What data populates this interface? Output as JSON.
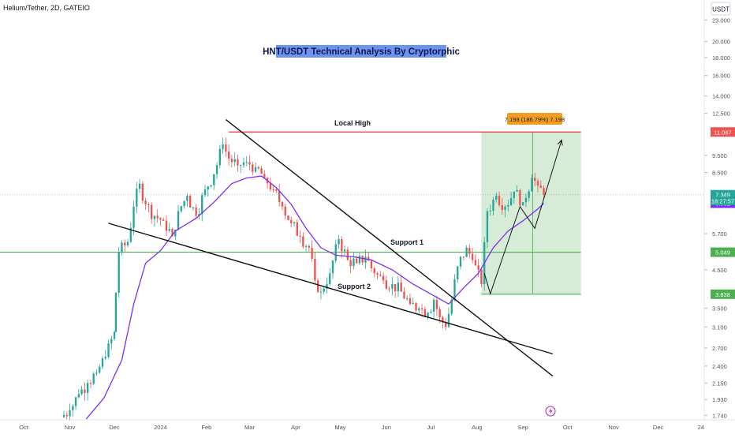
{
  "header": {
    "symbol_line": "Helium/Tether, 2D, GATEIO",
    "currency": "USDT"
  },
  "chart_data": {
    "type": "candlestick",
    "title": "HNT/USDT Technical Analysis By Cryptorphic",
    "y_scale": "log",
    "ylim": [
      1.69,
      26.2
    ],
    "y_ticks": [
      "23.000",
      "20.000",
      "18.000",
      "16.000",
      "14.000",
      "12.500",
      "11.067",
      "9.500",
      "8.500",
      "7.349",
      "6.952",
      "5.700",
      "5.049",
      "4.500",
      "3.838",
      "3.500",
      "3.100",
      "2.700",
      "2.400",
      "2.150",
      "1.930",
      "1.740"
    ],
    "x_ticks": [
      "Oct",
      "Nov",
      "Dec",
      "2024",
      "Feb",
      "Mar",
      "Apr",
      "May",
      "Jun",
      "Jul",
      "Aug",
      "Sep",
      "Oct",
      "Nov",
      "Dec",
      "24"
    ],
    "x_range": [
      "2023-09-15",
      "2025-01-01"
    ],
    "candle_interval_days": 2,
    "colors": {
      "up": "#26a69a",
      "down": "#ef5350",
      "ma": "#7b2ff7",
      "resistance": "#e53935",
      "support": "#4caf50",
      "trendline": "#111111",
      "box": "#c8e6c9"
    },
    "price_series": [
      {
        "date": "2023-10-26",
        "close": 1.72
      },
      {
        "date": "2023-11-01",
        "close": 1.8
      },
      {
        "date": "2023-11-07",
        "close": 2.0
      },
      {
        "date": "2023-11-13",
        "close": 2.15
      },
      {
        "date": "2023-11-19",
        "close": 2.3
      },
      {
        "date": "2023-11-25",
        "close": 2.55
      },
      {
        "date": "2023-12-01",
        "close": 3.0
      },
      {
        "date": "2023-12-04",
        "close": 5.05
      },
      {
        "date": "2023-12-10",
        "close": 5.4
      },
      {
        "date": "2023-12-14",
        "close": 6.8
      },
      {
        "date": "2023-12-18",
        "close": 7.9
      },
      {
        "date": "2023-12-22",
        "close": 6.9
      },
      {
        "date": "2023-12-28",
        "close": 6.4
      },
      {
        "date": "2024-01-03",
        "close": 6.2
      },
      {
        "date": "2024-01-09",
        "close": 5.6
      },
      {
        "date": "2024-01-13",
        "close": 6.6
      },
      {
        "date": "2024-01-19",
        "close": 7.3
      },
      {
        "date": "2024-01-25",
        "close": 6.4
      },
      {
        "date": "2024-01-31",
        "close": 7.6
      },
      {
        "date": "2024-02-06",
        "close": 8.4
      },
      {
        "date": "2024-02-12",
        "close": 10.2
      },
      {
        "date": "2024-02-16",
        "close": 9.3
      },
      {
        "date": "2024-02-22",
        "close": 8.9
      },
      {
        "date": "2024-02-28",
        "close": 9.1
      },
      {
        "date": "2024-03-05",
        "close": 8.8
      },
      {
        "date": "2024-03-11",
        "close": 8.2
      },
      {
        "date": "2024-03-17",
        "close": 7.6
      },
      {
        "date": "2024-03-23",
        "close": 6.8
      },
      {
        "date": "2024-03-29",
        "close": 6.1
      },
      {
        "date": "2024-04-04",
        "close": 5.6
      },
      {
        "date": "2024-04-10",
        "close": 5.2
      },
      {
        "date": "2024-04-14",
        "close": 4.2
      },
      {
        "date": "2024-04-18",
        "close": 3.9
      },
      {
        "date": "2024-04-24",
        "close": 4.4
      },
      {
        "date": "2024-04-30",
        "close": 5.5
      },
      {
        "date": "2024-05-06",
        "close": 4.8
      },
      {
        "date": "2024-05-12",
        "close": 4.7
      },
      {
        "date": "2024-05-18",
        "close": 4.9
      },
      {
        "date": "2024-05-24",
        "close": 4.4
      },
      {
        "date": "2024-05-30",
        "close": 4.2
      },
      {
        "date": "2024-06-05",
        "close": 4.1
      },
      {
        "date": "2024-06-11",
        "close": 3.9
      },
      {
        "date": "2024-06-17",
        "close": 3.6
      },
      {
        "date": "2024-06-23",
        "close": 3.5
      },
      {
        "date": "2024-06-29",
        "close": 3.4
      },
      {
        "date": "2024-07-03",
        "close": 3.7
      },
      {
        "date": "2024-07-07",
        "close": 3.3
      },
      {
        "date": "2024-07-11",
        "close": 3.1
      },
      {
        "date": "2024-07-15",
        "close": 3.7
      },
      {
        "date": "2024-07-19",
        "close": 4.6
      },
      {
        "date": "2024-07-25",
        "close": 5.2
      },
      {
        "date": "2024-07-29",
        "close": 4.8
      },
      {
        "date": "2024-08-04",
        "close": 4.1
      },
      {
        "date": "2024-08-08",
        "close": 6.6
      },
      {
        "date": "2024-08-14",
        "close": 7.3
      },
      {
        "date": "2024-08-20",
        "close": 6.8
      },
      {
        "date": "2024-08-26",
        "close": 7.5
      },
      {
        "date": "2024-09-01",
        "close": 7.0
      },
      {
        "date": "2024-09-07",
        "close": 8.2
      },
      {
        "date": "2024-09-11",
        "close": 7.8
      },
      {
        "date": "2024-09-15",
        "close": 7.35
      }
    ],
    "ma_series": [
      {
        "date": "2023-11-12",
        "value": 1.7
      },
      {
        "date": "2023-11-24",
        "value": 1.95
      },
      {
        "date": "2023-12-06",
        "value": 2.5
      },
      {
        "date": "2023-12-14",
        "value": 3.6
      },
      {
        "date": "2023-12-22",
        "value": 4.7
      },
      {
        "date": "2024-01-01",
        "value": 5.1
      },
      {
        "date": "2024-01-11",
        "value": 5.8
      },
      {
        "date": "2024-01-25",
        "value": 6.3
      },
      {
        "date": "2024-02-06",
        "value": 7.0
      },
      {
        "date": "2024-02-18",
        "value": 7.9
      },
      {
        "date": "2024-02-28",
        "value": 8.2
      },
      {
        "date": "2024-03-09",
        "value": 8.3
      },
      {
        "date": "2024-03-19",
        "value": 7.7
      },
      {
        "date": "2024-03-29",
        "value": 6.9
      },
      {
        "date": "2024-04-08",
        "value": 5.9
      },
      {
        "date": "2024-04-18",
        "value": 5.2
      },
      {
        "date": "2024-04-28",
        "value": 4.95
      },
      {
        "date": "2024-05-10",
        "value": 4.9
      },
      {
        "date": "2024-05-22",
        "value": 4.8
      },
      {
        "date": "2024-06-05",
        "value": 4.5
      },
      {
        "date": "2024-06-19",
        "value": 4.1
      },
      {
        "date": "2024-07-03",
        "value": 3.8
      },
      {
        "date": "2024-07-13",
        "value": 3.6
      },
      {
        "date": "2024-07-23",
        "value": 4.0
      },
      {
        "date": "2024-08-02",
        "value": 4.4
      },
      {
        "date": "2024-08-12",
        "value": 5.2
      },
      {
        "date": "2024-08-22",
        "value": 5.8
      },
      {
        "date": "2024-09-01",
        "value": 6.2
      },
      {
        "date": "2024-09-11",
        "value": 6.7
      },
      {
        "date": "2024-09-15",
        "value": 6.95
      }
    ],
    "horizontal_levels": [
      {
        "name": "Local High",
        "value": 11.067,
        "color": "#e53935",
        "start": "2024-02-16",
        "end": "2024-10-10"
      },
      {
        "name": "Support 1",
        "value": 5.049,
        "color": "#4caf50",
        "start": "2023-09-15",
        "end": "2024-10-10"
      },
      {
        "name": "",
        "value": 3.838,
        "color": "#4caf50",
        "start": "2024-08-04",
        "end": "2024-10-10"
      }
    ],
    "trendlines": [
      {
        "name": "descending resistance",
        "start": {
          "date": "2024-02-14",
          "value": 12.0
        },
        "end": {
          "date": "2024-09-21",
          "value": 2.25
        },
        "color": "#111111"
      },
      {
        "name": "Support 2",
        "start": {
          "date": "2023-11-27",
          "value": 6.1
        },
        "end": {
          "date": "2024-09-21",
          "value": 2.6
        },
        "color": "#111111"
      }
    ],
    "projection_path": [
      {
        "date": "2024-08-06",
        "value": 4.4
      },
      {
        "date": "2024-08-10",
        "value": 3.85
      },
      {
        "date": "2024-08-30",
        "value": 6.8
      },
      {
        "date": "2024-09-09",
        "value": 5.9
      },
      {
        "date": "2024-09-27",
        "value": 10.5
      }
    ],
    "target_box": {
      "start": "2024-08-04",
      "end": "2024-10-10",
      "bottom": 3.838,
      "top": 11.067,
      "color": "#c8e6c9"
    },
    "price_labels": [
      {
        "value": 11.067,
        "text": "11.067",
        "bg": "#ef5350",
        "fg": "#ffffff"
      },
      {
        "value": 7.349,
        "text": "7.349",
        "bg": "#26a69a",
        "fg": "#ffffff"
      },
      {
        "value": 6.952,
        "text": "6.952",
        "bg": "#7b2ff7",
        "fg": "#ffffff"
      },
      {
        "value": 5.049,
        "text": "5.049",
        "bg": "#4caf50",
        "fg": "#ffffff"
      },
      {
        "value": 3.838,
        "text": "3.838",
        "bg": "#4caf50",
        "fg": "#ffffff"
      }
    ],
    "countdown": "18:27:57",
    "annotations": {
      "local_high": "Local High",
      "support_1": "Support 1",
      "support_2": "Support 2",
      "measure": "7.198 (186.79%) 7.198"
    }
  }
}
